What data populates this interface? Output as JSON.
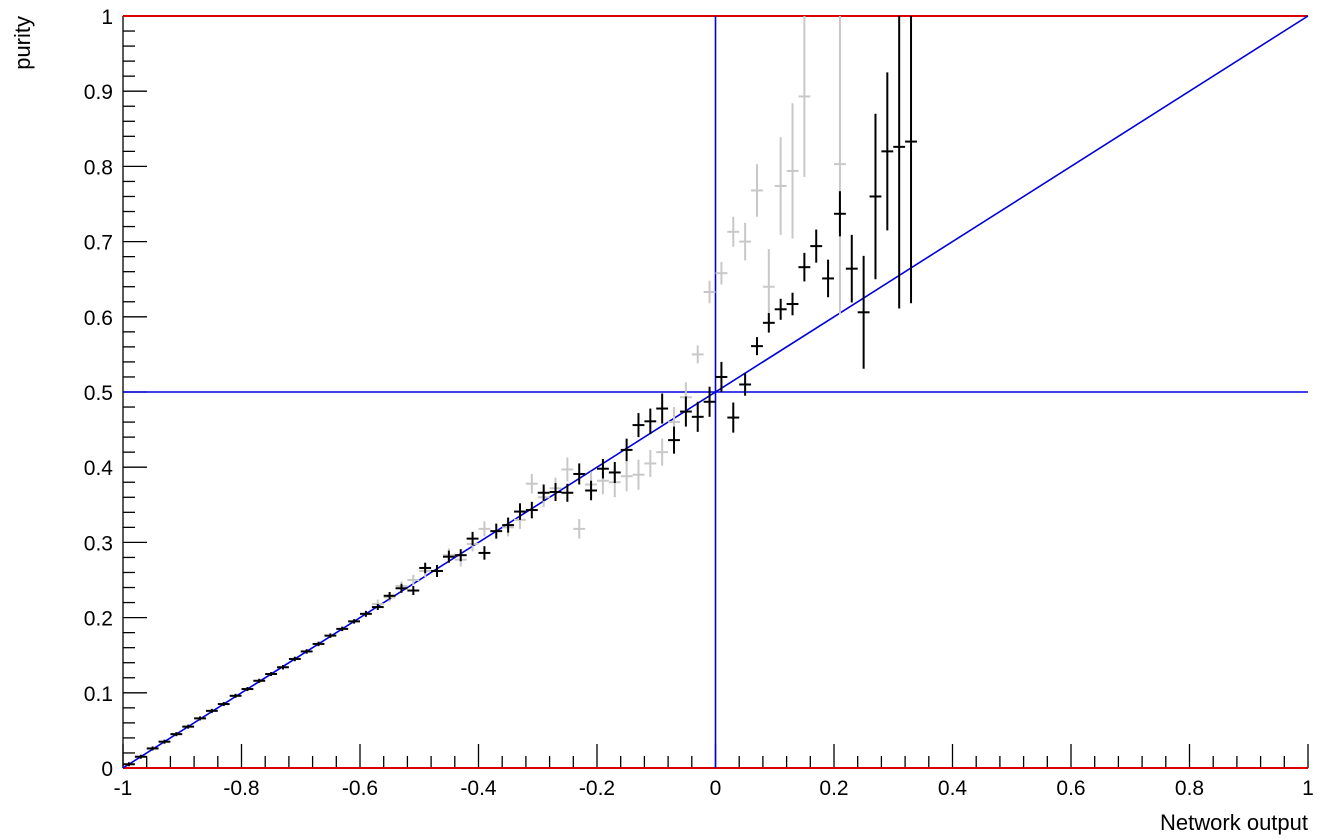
{
  "chart_data": {
    "type": "scatter",
    "title": "",
    "xlabel": "Network output",
    "ylabel": "purity",
    "xlim": [
      -1,
      1
    ],
    "ylim": [
      0,
      1
    ],
    "x_ticks": [
      "-1",
      "-0.8",
      "-0.6",
      "-0.4",
      "-0.2",
      "0",
      "0.2",
      "0.4",
      "0.6",
      "0.8",
      "1"
    ],
    "y_ticks": [
      "0",
      "0.1",
      "0.2",
      "0.3",
      "0.4",
      "0.5",
      "0.6",
      "0.7",
      "0.8",
      "0.9",
      "1"
    ],
    "grid": false,
    "legend": "none",
    "bin_half_width": 0.01,
    "colors": {
      "black_series": "#000000",
      "grey_series": "#c8c8c8",
      "reference_lines": "#0000dd",
      "bounds": "#dd0000"
    },
    "reference_lines": {
      "diagonal": {
        "from": [
          -1,
          0
        ],
        "to": [
          1,
          1
        ]
      },
      "vertical_x": 0,
      "horizontal_y": 0.5,
      "bounds_y": [
        0,
        1
      ]
    },
    "series": [
      {
        "color": "#000000",
        "points": [
          {
            "x": -0.99,
            "y": 0.005,
            "err": 0.002
          },
          {
            "x": -0.97,
            "y": 0.015,
            "err": 0.002
          },
          {
            "x": -0.95,
            "y": 0.026,
            "err": 0.002
          },
          {
            "x": -0.93,
            "y": 0.035,
            "err": 0.002
          },
          {
            "x": -0.91,
            "y": 0.045,
            "err": 0.002
          },
          {
            "x": -0.89,
            "y": 0.055,
            "err": 0.002
          },
          {
            "x": -0.87,
            "y": 0.066,
            "err": 0.002
          },
          {
            "x": -0.85,
            "y": 0.076,
            "err": 0.002
          },
          {
            "x": -0.83,
            "y": 0.085,
            "err": 0.002
          },
          {
            "x": -0.81,
            "y": 0.096,
            "err": 0.002
          },
          {
            "x": -0.79,
            "y": 0.105,
            "err": 0.002
          },
          {
            "x": -0.77,
            "y": 0.116,
            "err": 0.002
          },
          {
            "x": -0.75,
            "y": 0.125,
            "err": 0.002
          },
          {
            "x": -0.73,
            "y": 0.134,
            "err": 0.003
          },
          {
            "x": -0.71,
            "y": 0.145,
            "err": 0.003
          },
          {
            "x": -0.69,
            "y": 0.155,
            "err": 0.003
          },
          {
            "x": -0.67,
            "y": 0.165,
            "err": 0.003
          },
          {
            "x": -0.65,
            "y": 0.176,
            "err": 0.003
          },
          {
            "x": -0.63,
            "y": 0.185,
            "err": 0.003
          },
          {
            "x": -0.61,
            "y": 0.195,
            "err": 0.003
          },
          {
            "x": -0.59,
            "y": 0.205,
            "err": 0.004
          },
          {
            "x": -0.57,
            "y": 0.214,
            "err": 0.004
          },
          {
            "x": -0.55,
            "y": 0.229,
            "err": 0.005
          },
          {
            "x": -0.53,
            "y": 0.239,
            "err": 0.006
          },
          {
            "x": -0.51,
            "y": 0.236,
            "err": 0.006
          },
          {
            "x": -0.49,
            "y": 0.266,
            "err": 0.007
          },
          {
            "x": -0.47,
            "y": 0.262,
            "err": 0.008
          },
          {
            "x": -0.45,
            "y": 0.281,
            "err": 0.008
          },
          {
            "x": -0.43,
            "y": 0.283,
            "err": 0.008
          },
          {
            "x": -0.41,
            "y": 0.305,
            "err": 0.009
          },
          {
            "x": -0.39,
            "y": 0.286,
            "err": 0.009
          },
          {
            "x": -0.37,
            "y": 0.315,
            "err": 0.01
          },
          {
            "x": -0.35,
            "y": 0.323,
            "err": 0.01
          },
          {
            "x": -0.33,
            "y": 0.341,
            "err": 0.011
          },
          {
            "x": -0.31,
            "y": 0.343,
            "err": 0.011
          },
          {
            "x": -0.29,
            "y": 0.366,
            "err": 0.011
          },
          {
            "x": -0.27,
            "y": 0.367,
            "err": 0.012
          },
          {
            "x": -0.25,
            "y": 0.366,
            "err": 0.012
          },
          {
            "x": -0.23,
            "y": 0.391,
            "err": 0.014
          },
          {
            "x": -0.21,
            "y": 0.369,
            "err": 0.013
          },
          {
            "x": -0.19,
            "y": 0.398,
            "err": 0.013
          },
          {
            "x": -0.17,
            "y": 0.393,
            "err": 0.014
          },
          {
            "x": -0.15,
            "y": 0.423,
            "err": 0.015
          },
          {
            "x": -0.13,
            "y": 0.456,
            "err": 0.016
          },
          {
            "x": -0.11,
            "y": 0.461,
            "err": 0.017
          },
          {
            "x": -0.09,
            "y": 0.478,
            "err": 0.02
          },
          {
            "x": -0.07,
            "y": 0.436,
            "err": 0.018
          },
          {
            "x": -0.05,
            "y": 0.474,
            "err": 0.02
          },
          {
            "x": -0.03,
            "y": 0.467,
            "err": 0.02
          },
          {
            "x": -0.01,
            "y": 0.487,
            "err": 0.02
          },
          {
            "x": 0.01,
            "y": 0.52,
            "err": 0.02
          },
          {
            "x": 0.03,
            "y": 0.466,
            "err": 0.02
          },
          {
            "x": 0.05,
            "y": 0.51,
            "err": 0.015
          },
          {
            "x": 0.07,
            "y": 0.561,
            "err": 0.012
          },
          {
            "x": 0.09,
            "y": 0.592,
            "err": 0.013
          },
          {
            "x": 0.11,
            "y": 0.61,
            "err": 0.014
          },
          {
            "x": 0.13,
            "y": 0.617,
            "err": 0.015
          },
          {
            "x": 0.15,
            "y": 0.666,
            "err": 0.019
          },
          {
            "x": 0.17,
            "y": 0.694,
            "err": 0.022
          },
          {
            "x": 0.19,
            "y": 0.651,
            "err": 0.025
          },
          {
            "x": 0.21,
            "y": 0.737,
            "err": 0.03
          },
          {
            "x": 0.23,
            "y": 0.664,
            "err": 0.045
          },
          {
            "x": 0.25,
            "y": 0.606,
            "err": 0.075
          },
          {
            "x": 0.27,
            "y": 0.76,
            "err": 0.11
          },
          {
            "x": 0.29,
            "y": 0.82,
            "err": 0.105
          },
          {
            "x": 0.31,
            "y": 0.826,
            "err": 0.215
          },
          {
            "x": 0.33,
            "y": 0.833,
            "err": 0.215
          }
        ]
      },
      {
        "color": "#c8c8c8",
        "points": [
          {
            "x": -0.57,
            "y": 0.218,
            "err": 0.006
          },
          {
            "x": -0.55,
            "y": 0.227,
            "err": 0.006
          },
          {
            "x": -0.53,
            "y": 0.242,
            "err": 0.006
          },
          {
            "x": -0.51,
            "y": 0.25,
            "err": 0.007
          },
          {
            "x": -0.49,
            "y": 0.262,
            "err": 0.008
          },
          {
            "x": -0.45,
            "y": 0.283,
            "err": 0.009
          },
          {
            "x": -0.43,
            "y": 0.277,
            "err": 0.009
          },
          {
            "x": -0.41,
            "y": 0.298,
            "err": 0.01
          },
          {
            "x": -0.39,
            "y": 0.318,
            "err": 0.01
          },
          {
            "x": -0.35,
            "y": 0.32,
            "err": 0.012
          },
          {
            "x": -0.33,
            "y": 0.33,
            "err": 0.012
          },
          {
            "x": -0.31,
            "y": 0.378,
            "err": 0.013
          },
          {
            "x": -0.29,
            "y": 0.36,
            "err": 0.013
          },
          {
            "x": -0.27,
            "y": 0.372,
            "err": 0.014
          },
          {
            "x": -0.25,
            "y": 0.397,
            "err": 0.016
          },
          {
            "x": -0.23,
            "y": 0.318,
            "err": 0.013
          },
          {
            "x": -0.21,
            "y": 0.377,
            "err": 0.017
          },
          {
            "x": -0.19,
            "y": 0.382,
            "err": 0.018
          },
          {
            "x": -0.17,
            "y": 0.38,
            "err": 0.02
          },
          {
            "x": -0.15,
            "y": 0.388,
            "err": 0.02
          },
          {
            "x": -0.13,
            "y": 0.39,
            "err": 0.02
          },
          {
            "x": -0.11,
            "y": 0.405,
            "err": 0.018
          },
          {
            "x": -0.09,
            "y": 0.42,
            "err": 0.018
          },
          {
            "x": -0.07,
            "y": 0.46,
            "err": 0.02
          },
          {
            "x": -0.05,
            "y": 0.493,
            "err": 0.02
          },
          {
            "x": -0.03,
            "y": 0.55,
            "err": 0.012
          },
          {
            "x": -0.01,
            "y": 0.633,
            "err": 0.015
          },
          {
            "x": 0.01,
            "y": 0.658,
            "err": 0.015
          },
          {
            "x": 0.03,
            "y": 0.713,
            "err": 0.02
          },
          {
            "x": 0.05,
            "y": 0.7,
            "err": 0.025
          },
          {
            "x": 0.07,
            "y": 0.768,
            "err": 0.035
          },
          {
            "x": 0.09,
            "y": 0.64,
            "err": 0.05
          },
          {
            "x": 0.11,
            "y": 0.774,
            "err": 0.065
          },
          {
            "x": 0.13,
            "y": 0.794,
            "err": 0.09
          },
          {
            "x": 0.15,
            "y": 0.893,
            "err": 0.107
          },
          {
            "x": 0.21,
            "y": 0.803,
            "err": 0.2
          }
        ]
      }
    ]
  }
}
